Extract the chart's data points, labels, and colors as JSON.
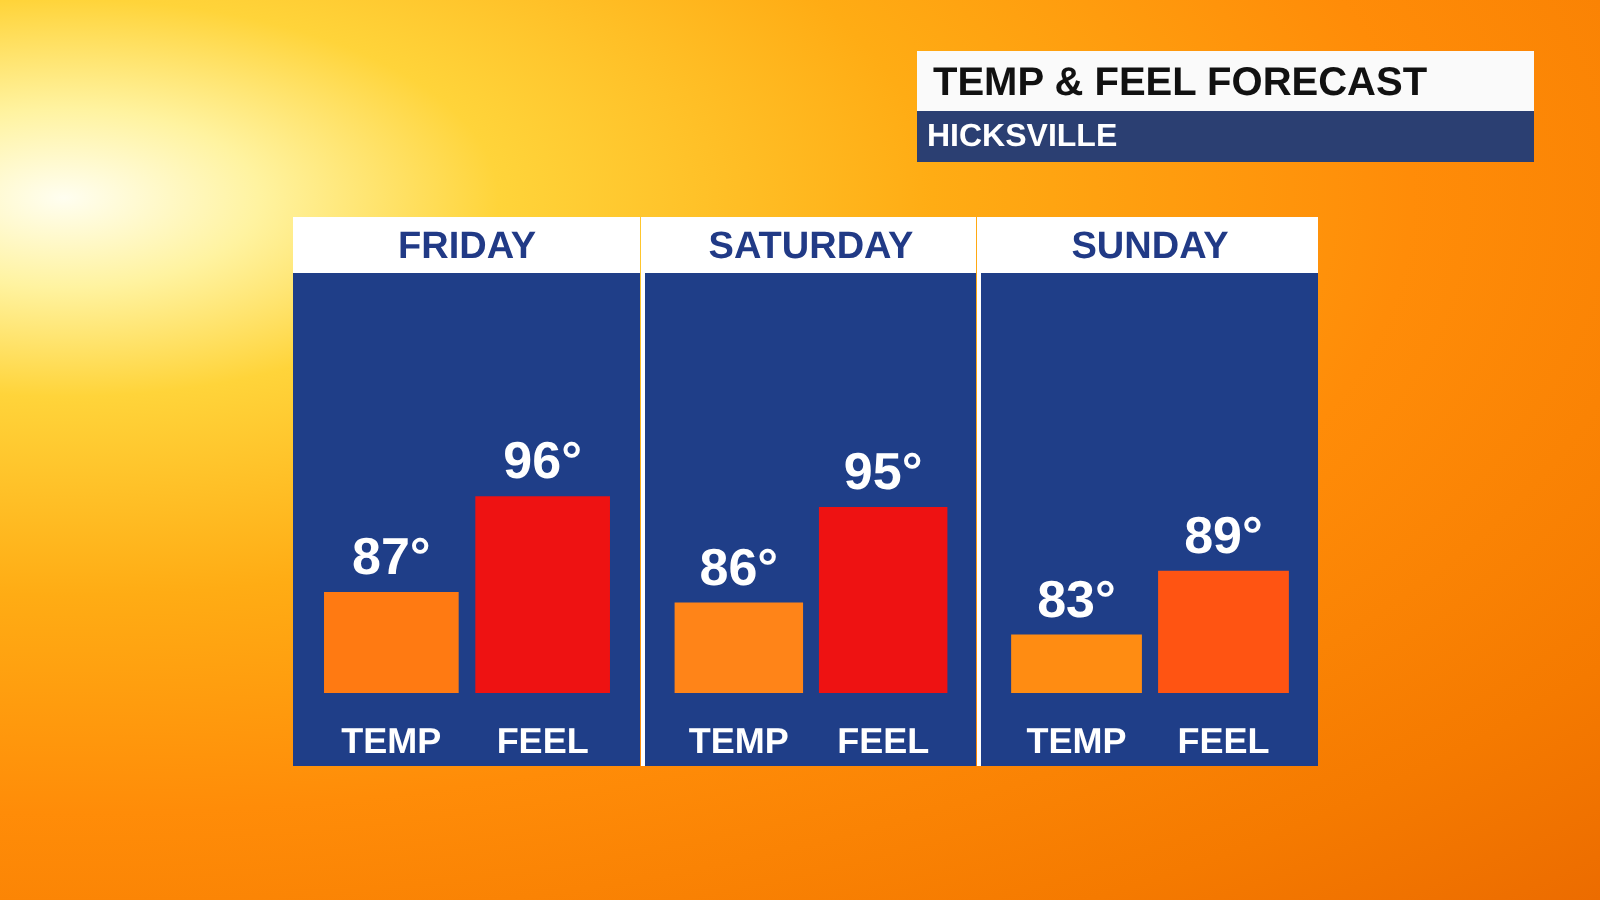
{
  "chart_data": [
    {
      "type": "other",
      "title": "TEMP & FEEL FORECAST",
      "subtitle": "HICKSVILLE"
    },
    {
      "type": "bar",
      "title": "FRIDAY",
      "categories": [
        "TEMP",
        "FEEL"
      ],
      "values": [
        87,
        96
      ],
      "colors": [
        "#ff7a12",
        "#ee1212"
      ],
      "value_labels": [
        "87°",
        "96°"
      ],
      "ylim": [
        77.5,
        117
      ],
      "tick_labels": "x"
    },
    {
      "type": "bar",
      "title": "SATURDAY",
      "categories": [
        "TEMP",
        "FEEL"
      ],
      "values": [
        86,
        95
      ],
      "colors": [
        "#ff8418",
        "#ee1212"
      ],
      "value_labels": [
        "86°",
        "95°"
      ],
      "ylim": [
        77.5,
        117
      ],
      "tick_labels": "x"
    },
    {
      "type": "bar",
      "title": "SUNDAY",
      "categories": [
        "TEMP",
        "FEEL"
      ],
      "values": [
        83,
        89
      ],
      "colors": [
        "#ff8c12",
        "#ff5412"
      ],
      "value_labels": [
        "83°",
        "89°"
      ],
      "ylim": [
        77.5,
        117
      ],
      "tick_labels": "x"
    }
  ]
}
